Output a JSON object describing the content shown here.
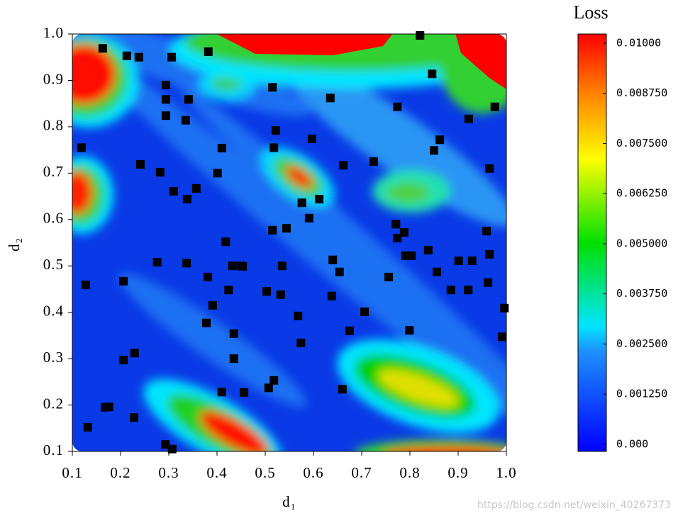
{
  "chart_data": {
    "type": "contour-scatter",
    "xlabel": "d₁",
    "ylabel": "d₂",
    "colorbar_title": "Loss",
    "watermark": "https://blog.csdn.net/weixin_40267373",
    "xlim": [
      0.1,
      1.0
    ],
    "ylim": [
      0.1,
      1.0
    ],
    "xticks": [
      0.1,
      0.2,
      0.3,
      0.4,
      0.5,
      0.6,
      0.7,
      0.8,
      0.9,
      {
        "value": 1.0,
        "label": "1.0"
      }
    ],
    "yticks": [
      0.1,
      0.2,
      0.3,
      0.4,
      0.5,
      0.6,
      0.7,
      0.8,
      0.9,
      {
        "value": 1.0,
        "label": "1.0"
      }
    ],
    "clim": [
      -0.00018,
      0.01023
    ],
    "cticks": [
      {
        "value": 0,
        "label": "0.000"
      },
      {
        "value": 0.00125,
        "label": "0.001250"
      },
      {
        "value": 0.0025,
        "label": "0.002500"
      },
      {
        "value": 0.00375,
        "label": "0.003750"
      },
      {
        "value": 0.005,
        "label": "0.005000"
      },
      {
        "value": 0.00625,
        "label": "0.006250"
      },
      {
        "value": 0.0075,
        "label": "0.007500"
      },
      {
        "value": 0.00875,
        "label": "0.008750"
      },
      {
        "value": 0.01,
        "label": "0.01000"
      }
    ],
    "marker_color": "#000000",
    "x": [
      0.163,
      0.213,
      0.238,
      0.306,
      0.382,
      0.821,
      0.294,
      0.294,
      0.341,
      0.294,
      0.335,
      0.515,
      0.635,
      0.846,
      0.976,
      0.774,
      0.119,
      0.241,
      0.282,
      0.31,
      0.357,
      0.338,
      0.401,
      0.41,
      0.522,
      0.518,
      0.597,
      0.662,
      0.725,
      0.922,
      0.862,
      0.85,
      0.965,
      0.771,
      0.788,
      0.774,
      0.838,
      0.856,
      0.791,
      0.803,
      0.901,
      0.929,
      0.965,
      0.959,
      0.962,
      0.921,
      0.885,
      0.996,
      0.991,
      0.799,
      0.756,
      0.638,
      0.654,
      0.706,
      0.675,
      0.568,
      0.574,
      0.503,
      0.532,
      0.544,
      0.576,
      0.591,
      0.64,
      0.612,
      0.45,
      0.418,
      0.432,
      0.453,
      0.391,
      0.435,
      0.515,
      0.424,
      0.381,
      0.378,
      0.41,
      0.507,
      0.518,
      0.66,
      0.535,
      0.337,
      0.276,
      0.206,
      0.206,
      0.128,
      0.229,
      0.132,
      0.168,
      0.176,
      0.228,
      0.293,
      0.307,
      0.435,
      0.456
    ],
    "y": [
      0.969,
      0.953,
      0.95,
      0.95,
      0.962,
      0.997,
      0.89,
      0.859,
      0.859,
      0.824,
      0.814,
      0.885,
      0.862,
      0.914,
      0.843,
      0.843,
      0.755,
      0.719,
      0.702,
      0.661,
      0.667,
      0.644,
      0.7,
      0.754,
      0.792,
      0.755,
      0.774,
      0.717,
      0.725,
      0.817,
      0.772,
      0.749,
      0.71,
      0.59,
      0.572,
      0.56,
      0.534,
      0.487,
      0.522,
      0.522,
      0.511,
      0.511,
      0.525,
      0.575,
      0.464,
      0.448,
      0.448,
      0.409,
      0.347,
      0.361,
      0.476,
      0.435,
      0.487,
      0.401,
      0.36,
      0.392,
      0.334,
      0.445,
      0.438,
      0.581,
      0.636,
      0.603,
      0.513,
      0.644,
      0.5,
      0.552,
      0.5,
      0.499,
      0.415,
      0.354,
      0.577,
      0.448,
      0.476,
      0.377,
      0.228,
      0.237,
      0.253,
      0.234,
      0.5,
      0.506,
      0.508,
      0.467,
      0.297,
      0.459,
      0.312,
      0.152,
      0.195,
      0.196,
      0.173,
      0.115,
      0.105,
      0.3,
      0.227
    ]
  }
}
